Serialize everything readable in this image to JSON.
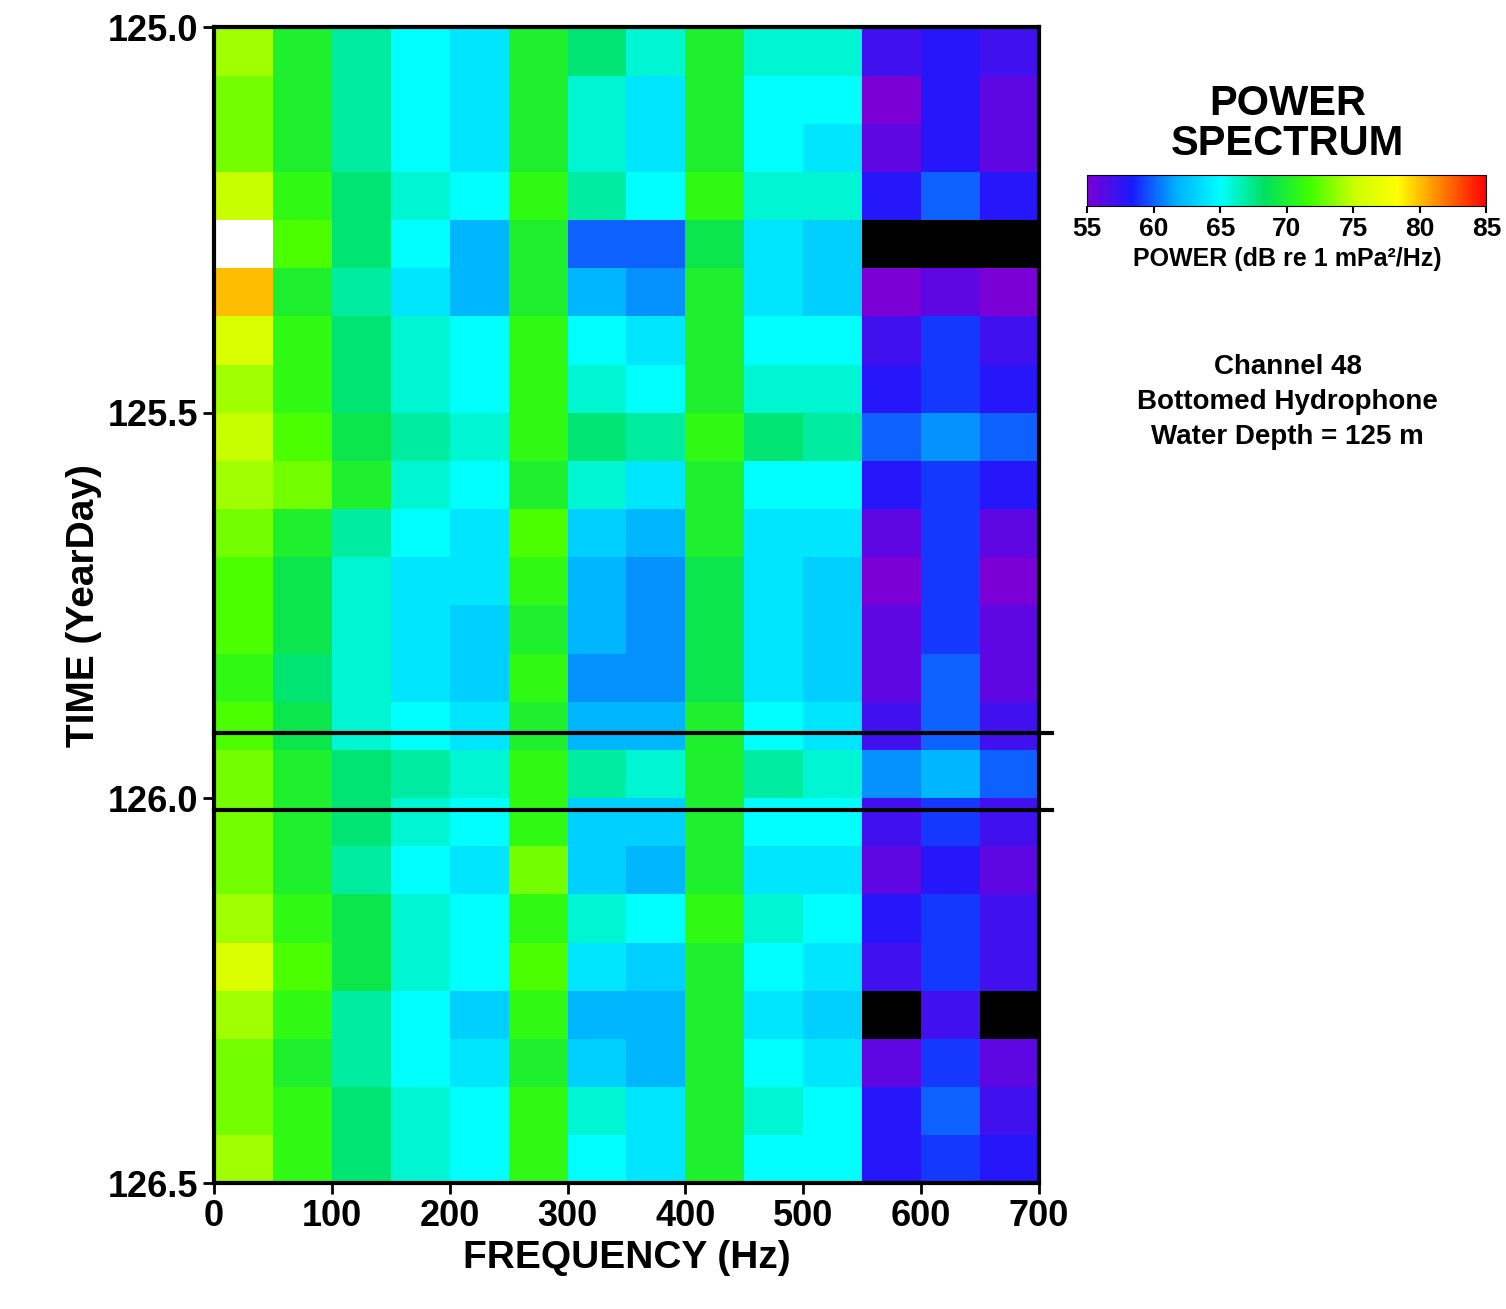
{
  "chart_data": {
    "type": "heatmap",
    "x_label": "FREQUENCY (Hz)",
    "y_label": "TIME (YearDay)",
    "xlim": [
      0,
      700
    ],
    "ylim": [
      126.5,
      125.0
    ],
    "xticks": [
      0,
      100,
      200,
      300,
      400,
      500,
      600,
      700
    ],
    "yticks": [
      {
        "value": 125.0,
        "label": "125.0"
      },
      {
        "value": 125.5,
        "label": "125.5"
      },
      {
        "value": 126.0,
        "label": "126.0"
      },
      {
        "value": 126.5,
        "label": "126.5"
      }
    ],
    "x_edges": [
      0,
      50,
      100,
      150,
      200,
      250,
      300,
      350,
      400,
      450,
      500,
      550,
      600,
      650,
      700
    ],
    "y_edges": [
      125.0,
      125.0625,
      125.125,
      125.1875,
      125.25,
      125.3125,
      125.375,
      125.4375,
      125.5,
      125.5625,
      125.625,
      125.6875,
      125.75,
      125.8125,
      125.875,
      125.9375,
      126.0,
      126.0625,
      126.125,
      126.1875,
      126.25,
      126.3125,
      126.375,
      126.4375,
      126.5
    ],
    "cells": [
      [
        74,
        70,
        67,
        65,
        64,
        70,
        68,
        66,
        70,
        66,
        66,
        57,
        58,
        57
      ],
      [
        73,
        70,
        67,
        65,
        64,
        70,
        66,
        64,
        70,
        65,
        65,
        55,
        58,
        56
      ],
      [
        73,
        70,
        67,
        65,
        64,
        70,
        66,
        64,
        70,
        65,
        64,
        56,
        58,
        56
      ],
      [
        75,
        71,
        68,
        66,
        65,
        71,
        67,
        65,
        71,
        66,
        66,
        58,
        60,
        58
      ],
      [
        86,
        72,
        68,
        65,
        62,
        70,
        60,
        60,
        69,
        64,
        63,
        54,
        54,
        54
      ],
      [
        80,
        70,
        67,
        64,
        62,
        70,
        62,
        61,
        70,
        64,
        63,
        55,
        56,
        55
      ],
      [
        76,
        71,
        68,
        66,
        65,
        71,
        65,
        64,
        70,
        65,
        65,
        57,
        59,
        57
      ],
      [
        74,
        71,
        68,
        66,
        65,
        71,
        66,
        65,
        70,
        66,
        66,
        58,
        59,
        58
      ],
      [
        75,
        72,
        69,
        67,
        66,
        71,
        68,
        67,
        71,
        68,
        67,
        60,
        61,
        60
      ],
      [
        74,
        73,
        70,
        66,
        65,
        70,
        66,
        64,
        70,
        65,
        65,
        58,
        59,
        58
      ],
      [
        73,
        70,
        67,
        65,
        64,
        72,
        63,
        62,
        70,
        64,
        64,
        56,
        59,
        56
      ],
      [
        72,
        69,
        66,
        64,
        64,
        71,
        62,
        61,
        69,
        64,
        63,
        55,
        59,
        55
      ],
      [
        72,
        69,
        66,
        64,
        63,
        70,
        62,
        61,
        69,
        64,
        63,
        56,
        59,
        56
      ],
      [
        71,
        68,
        66,
        64,
        63,
        71,
        61,
        61,
        69,
        64,
        63,
        56,
        60,
        56
      ],
      [
        72,
        69,
        66,
        65,
        64,
        70,
        62,
        62,
        70,
        65,
        64,
        57,
        60,
        57
      ],
      [
        73,
        70,
        68,
        67,
        66,
        71,
        67,
        66,
        70,
        67,
        66,
        61,
        62,
        60
      ],
      [
        73,
        70,
        68,
        66,
        65,
        71,
        63,
        63,
        70,
        65,
        65,
        57,
        59,
        57
      ],
      [
        73,
        70,
        67,
        65,
        64,
        73,
        63,
        62,
        70,
        64,
        64,
        56,
        58,
        56
      ],
      [
        74,
        71,
        69,
        66,
        65,
        71,
        66,
        65,
        71,
        66,
        65,
        58,
        59,
        57
      ],
      [
        76,
        72,
        69,
        66,
        65,
        72,
        64,
        63,
        70,
        65,
        64,
        57,
        59,
        57
      ],
      [
        74,
        71,
        67,
        65,
        63,
        71,
        62,
        62,
        70,
        64,
        63,
        54,
        57,
        54
      ],
      [
        73,
        70,
        67,
        65,
        64,
        70,
        63,
        62,
        70,
        65,
        64,
        56,
        59,
        56
      ],
      [
        73,
        71,
        68,
        66,
        65,
        71,
        66,
        64,
        70,
        66,
        65,
        58,
        60,
        57
      ],
      [
        74,
        71,
        68,
        66,
        65,
        71,
        65,
        64,
        70,
        65,
        65,
        58,
        59,
        58
      ]
    ],
    "hlines": [
      125.915,
      126.015
    ],
    "colorbar": {
      "title": "POWER\nSPECTRUM",
      "label": "POWER (dB re 1 mPa²/Hz)",
      "range": [
        55,
        85
      ],
      "ticks": [
        55,
        60,
        65,
        70,
        75,
        80,
        85
      ]
    },
    "annotations": [
      "Channel 48",
      "Bottomed Hydrophone",
      "Water Depth = 125 m"
    ]
  }
}
